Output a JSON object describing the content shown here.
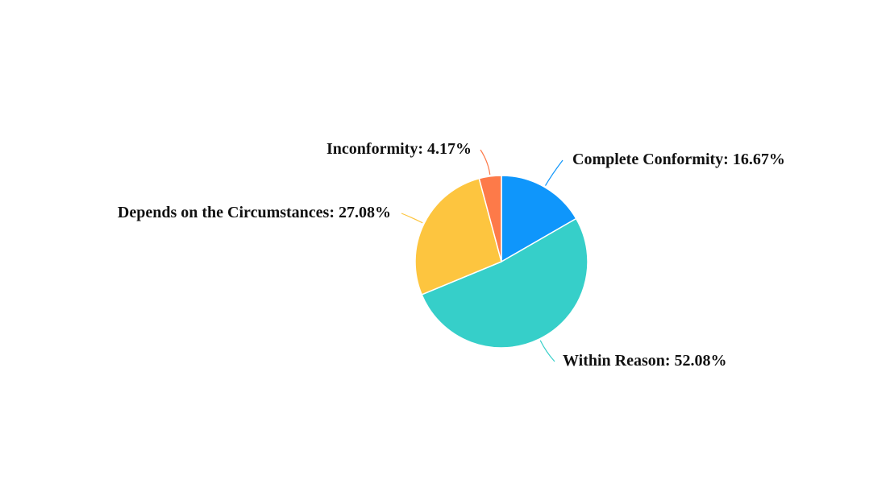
{
  "chart_data": {
    "type": "pie",
    "categories": [
      "Complete Conformity:",
      "Within Reason:",
      "Depends on the Circumstances:",
      "Inconformity:"
    ],
    "values": [
      16.67,
      52.08,
      27.08,
      4.17
    ],
    "value_labels": [
      "16.67%",
      "52.08%",
      "27.08%",
      "4.17%"
    ],
    "colors": [
      "#0f96fb",
      "#36cfc9",
      "#fdc53f",
      "#fd7a49"
    ]
  }
}
